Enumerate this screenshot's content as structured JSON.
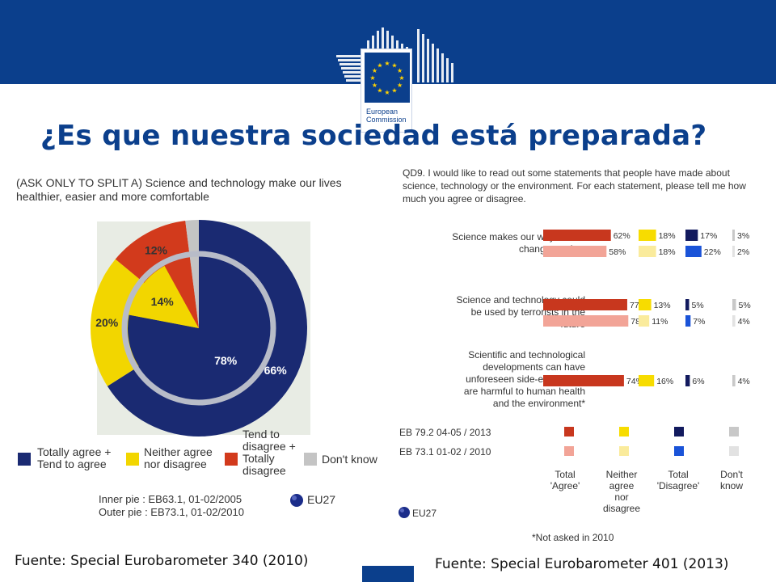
{
  "logo": {
    "line1": "European",
    "line2": "Commission"
  },
  "title": "¿Es que nuestra sociedad está preparada?",
  "colors": {
    "eu_blue": "#0b3f8c",
    "agree": "#1a2a72",
    "neither": "#f2d600",
    "disagree": "#d23a1c",
    "dont_know": "#c4c4c4",
    "agree_2013": "#c8371e",
    "agree_2010": "#f2a497",
    "neither_2013": "#f7dc00",
    "neither_2010": "#faeb9c",
    "disagree_2013": "#121a5e",
    "disagree_2010": "#1a53d8",
    "dk_2013": "#c8c8c8",
    "dk_2010": "#e2e2e2"
  },
  "left": {
    "question": "(ASK ONLY TO SPLIT A) Science and technology make our lives healthier, easier and more comfortable",
    "legend": {
      "agree_line1": "Totally agree +",
      "agree_line2": "Tend to agree",
      "neither_line1": "Neither agree",
      "neither_line2": "nor disagree",
      "disagree_line1": "Tend to",
      "disagree_line2": "disagree +",
      "disagree_line3": "Totally",
      "disagree_line4": "disagree",
      "dk": "Don't know"
    },
    "inner_note": "Inner pie : EB63.1, 01-02/2005",
    "outer_note": "Outer pie : EB73.1, 01-02/2010",
    "eu_label": "EU27"
  },
  "right": {
    "question": "QD9. I would like to read out some statements that people have made about science, technology or the environment. For each statement, please tell me how much you agree or disagree.",
    "statements": [
      {
        "lines": [
          "Science makes our ways of life",
          "change too fast"
        ]
      },
      {
        "lines": [
          "Science and technology could",
          "be used by terrorists in the",
          "future"
        ]
      },
      {
        "lines": [
          "Scientific and technological",
          "developments can have",
          "unforeseen side-effects that",
          "are harmful to human health",
          "and the environment*"
        ]
      }
    ],
    "legend_rows": [
      "EB 79.2 04-05 / 2013",
      "EB 73.1 01-02 / 2010"
    ],
    "col_labels": {
      "agree": [
        "Total",
        "'Agree'"
      ],
      "neither": [
        "Neither",
        "agree",
        "nor",
        "disagree"
      ],
      "disagree": [
        "Total",
        "'Disagree'"
      ],
      "dk": [
        "Don't",
        "know"
      ]
    },
    "eu_label": "EU27",
    "footnote": "*Not asked in 2010"
  },
  "sources": {
    "left": "Fuente: Special Eurobarometer 340 (2010)",
    "right": "Fuente: Special Eurobarometer 401 (2013)"
  },
  "chart_data": [
    {
      "type": "pie",
      "title": "(ASK ONLY TO SPLIT A) Science and technology make our lives healthier, easier and more comfortable",
      "categories": [
        "Totally agree + Tend to agree",
        "Neither agree nor disagree",
        "Tend to disagree + Totally disagree",
        "Don't know"
      ],
      "series": [
        {
          "name": "Inner pie : EB63.1, 01-02/2005",
          "values": [
            78,
            14,
            6,
            2
          ],
          "labels": [
            "78%",
            "14%",
            "",
            ""
          ]
        },
        {
          "name": "Outer pie : EB73.1, 01-02/2010",
          "values": [
            66,
            20,
            12,
            2
          ],
          "labels": [
            "66%",
            "20%",
            "12%",
            ""
          ]
        }
      ]
    },
    {
      "type": "bar",
      "title": "QD9. I would like to read out some statements that people have made about science, technology or the environment. For each statement, please tell me how much you agree or disagree.",
      "categories": [
        "Total 'Agree'",
        "Neither agree nor disagree",
        "Total 'Disagree'",
        "Don't know"
      ],
      "rows": [
        {
          "statement": "Science makes our ways of life change too fast",
          "2013": [
            62,
            18,
            17,
            3
          ],
          "2010": [
            58,
            18,
            22,
            2
          ]
        },
        {
          "statement": "Science and technology could be used by terrorists in the future",
          "2013": [
            77,
            13,
            5,
            5
          ],
          "2010": [
            78,
            11,
            7,
            4
          ]
        },
        {
          "statement": "Scientific and technological developments can have unforeseen side-effects that are harmful to human health and the environment*",
          "2013": [
            74,
            16,
            6,
            4
          ],
          "2010": null
        }
      ],
      "series": [
        {
          "name": "EB 79.2 04-05 / 2013"
        },
        {
          "name": "EB 73.1 01-02 / 2010"
        }
      ]
    }
  ]
}
